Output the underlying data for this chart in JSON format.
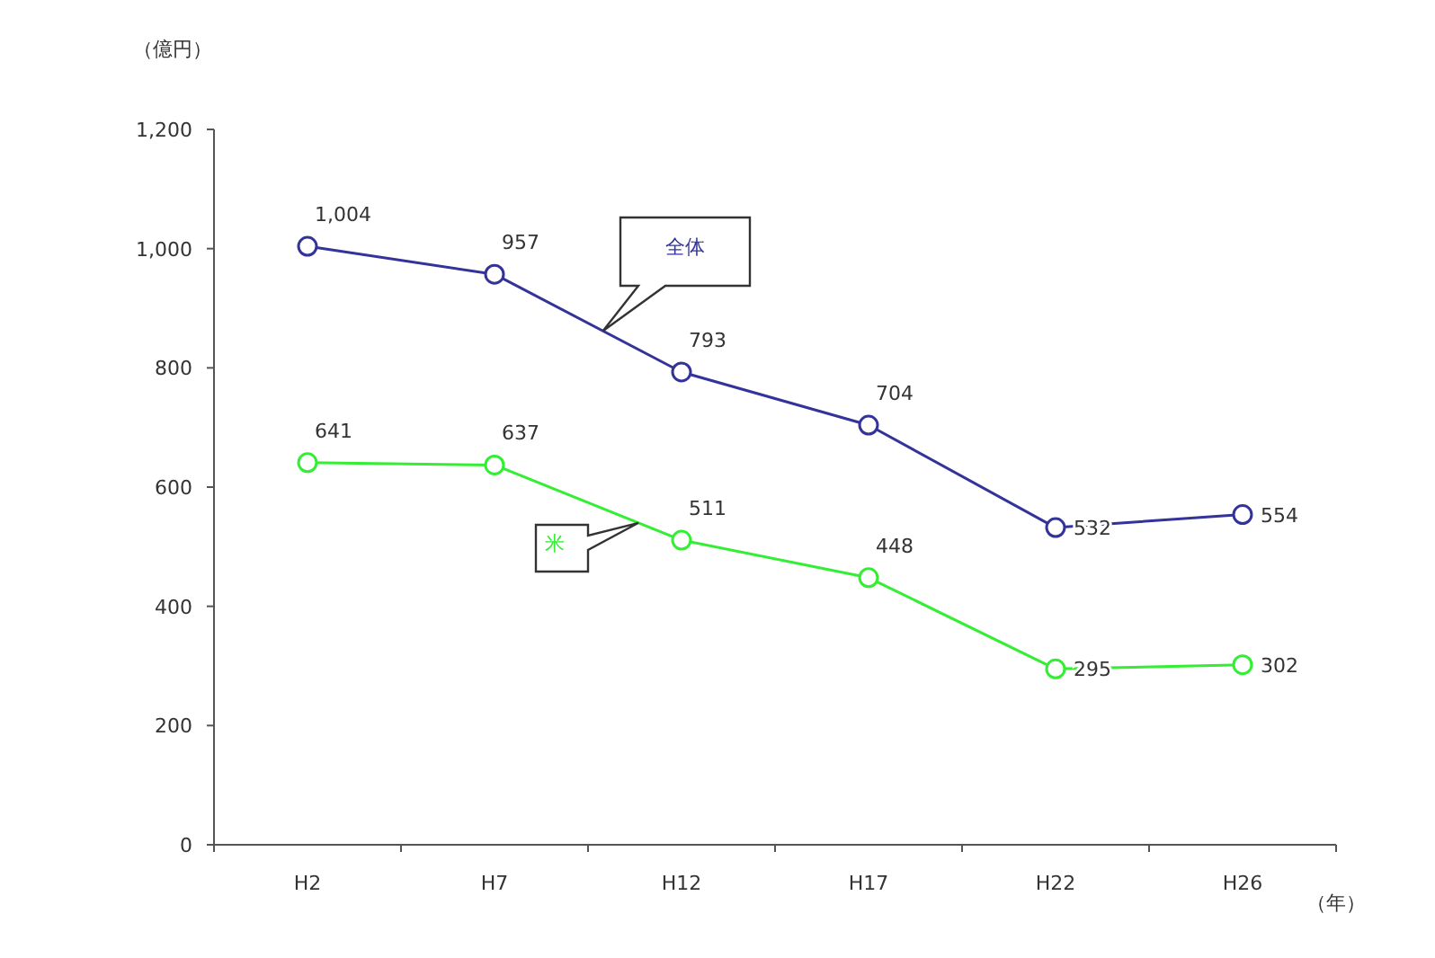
{
  "chart_data": {
    "type": "line",
    "ylabel": "（億円）",
    "xlabel": "（年）",
    "categories": [
      "H2",
      "H7",
      "H12",
      "H17",
      "H22",
      "H26"
    ],
    "ylim": [
      0,
      1200
    ],
    "yticks": [
      0,
      200,
      400,
      600,
      800,
      {
        "value": 1000,
        "label": "1,000"
      },
      {
        "value": 1200,
        "label": "1,200"
      }
    ],
    "grid": false,
    "marker": "circle",
    "line_style": "solid",
    "series": [
      {
        "name": "全体",
        "color": "#333399",
        "values": [
          1004,
          957,
          793,
          704,
          532,
          554
        ],
        "value_labels": [
          "1,004",
          "957",
          "793",
          "704",
          "532",
          "554"
        ]
      },
      {
        "name": "米",
        "color": "#33ee33",
        "values": [
          641,
          637,
          511,
          448,
          295,
          302
        ],
        "value_labels": [
          "641",
          "637",
          "511",
          "448",
          "295",
          "302"
        ]
      }
    ]
  }
}
